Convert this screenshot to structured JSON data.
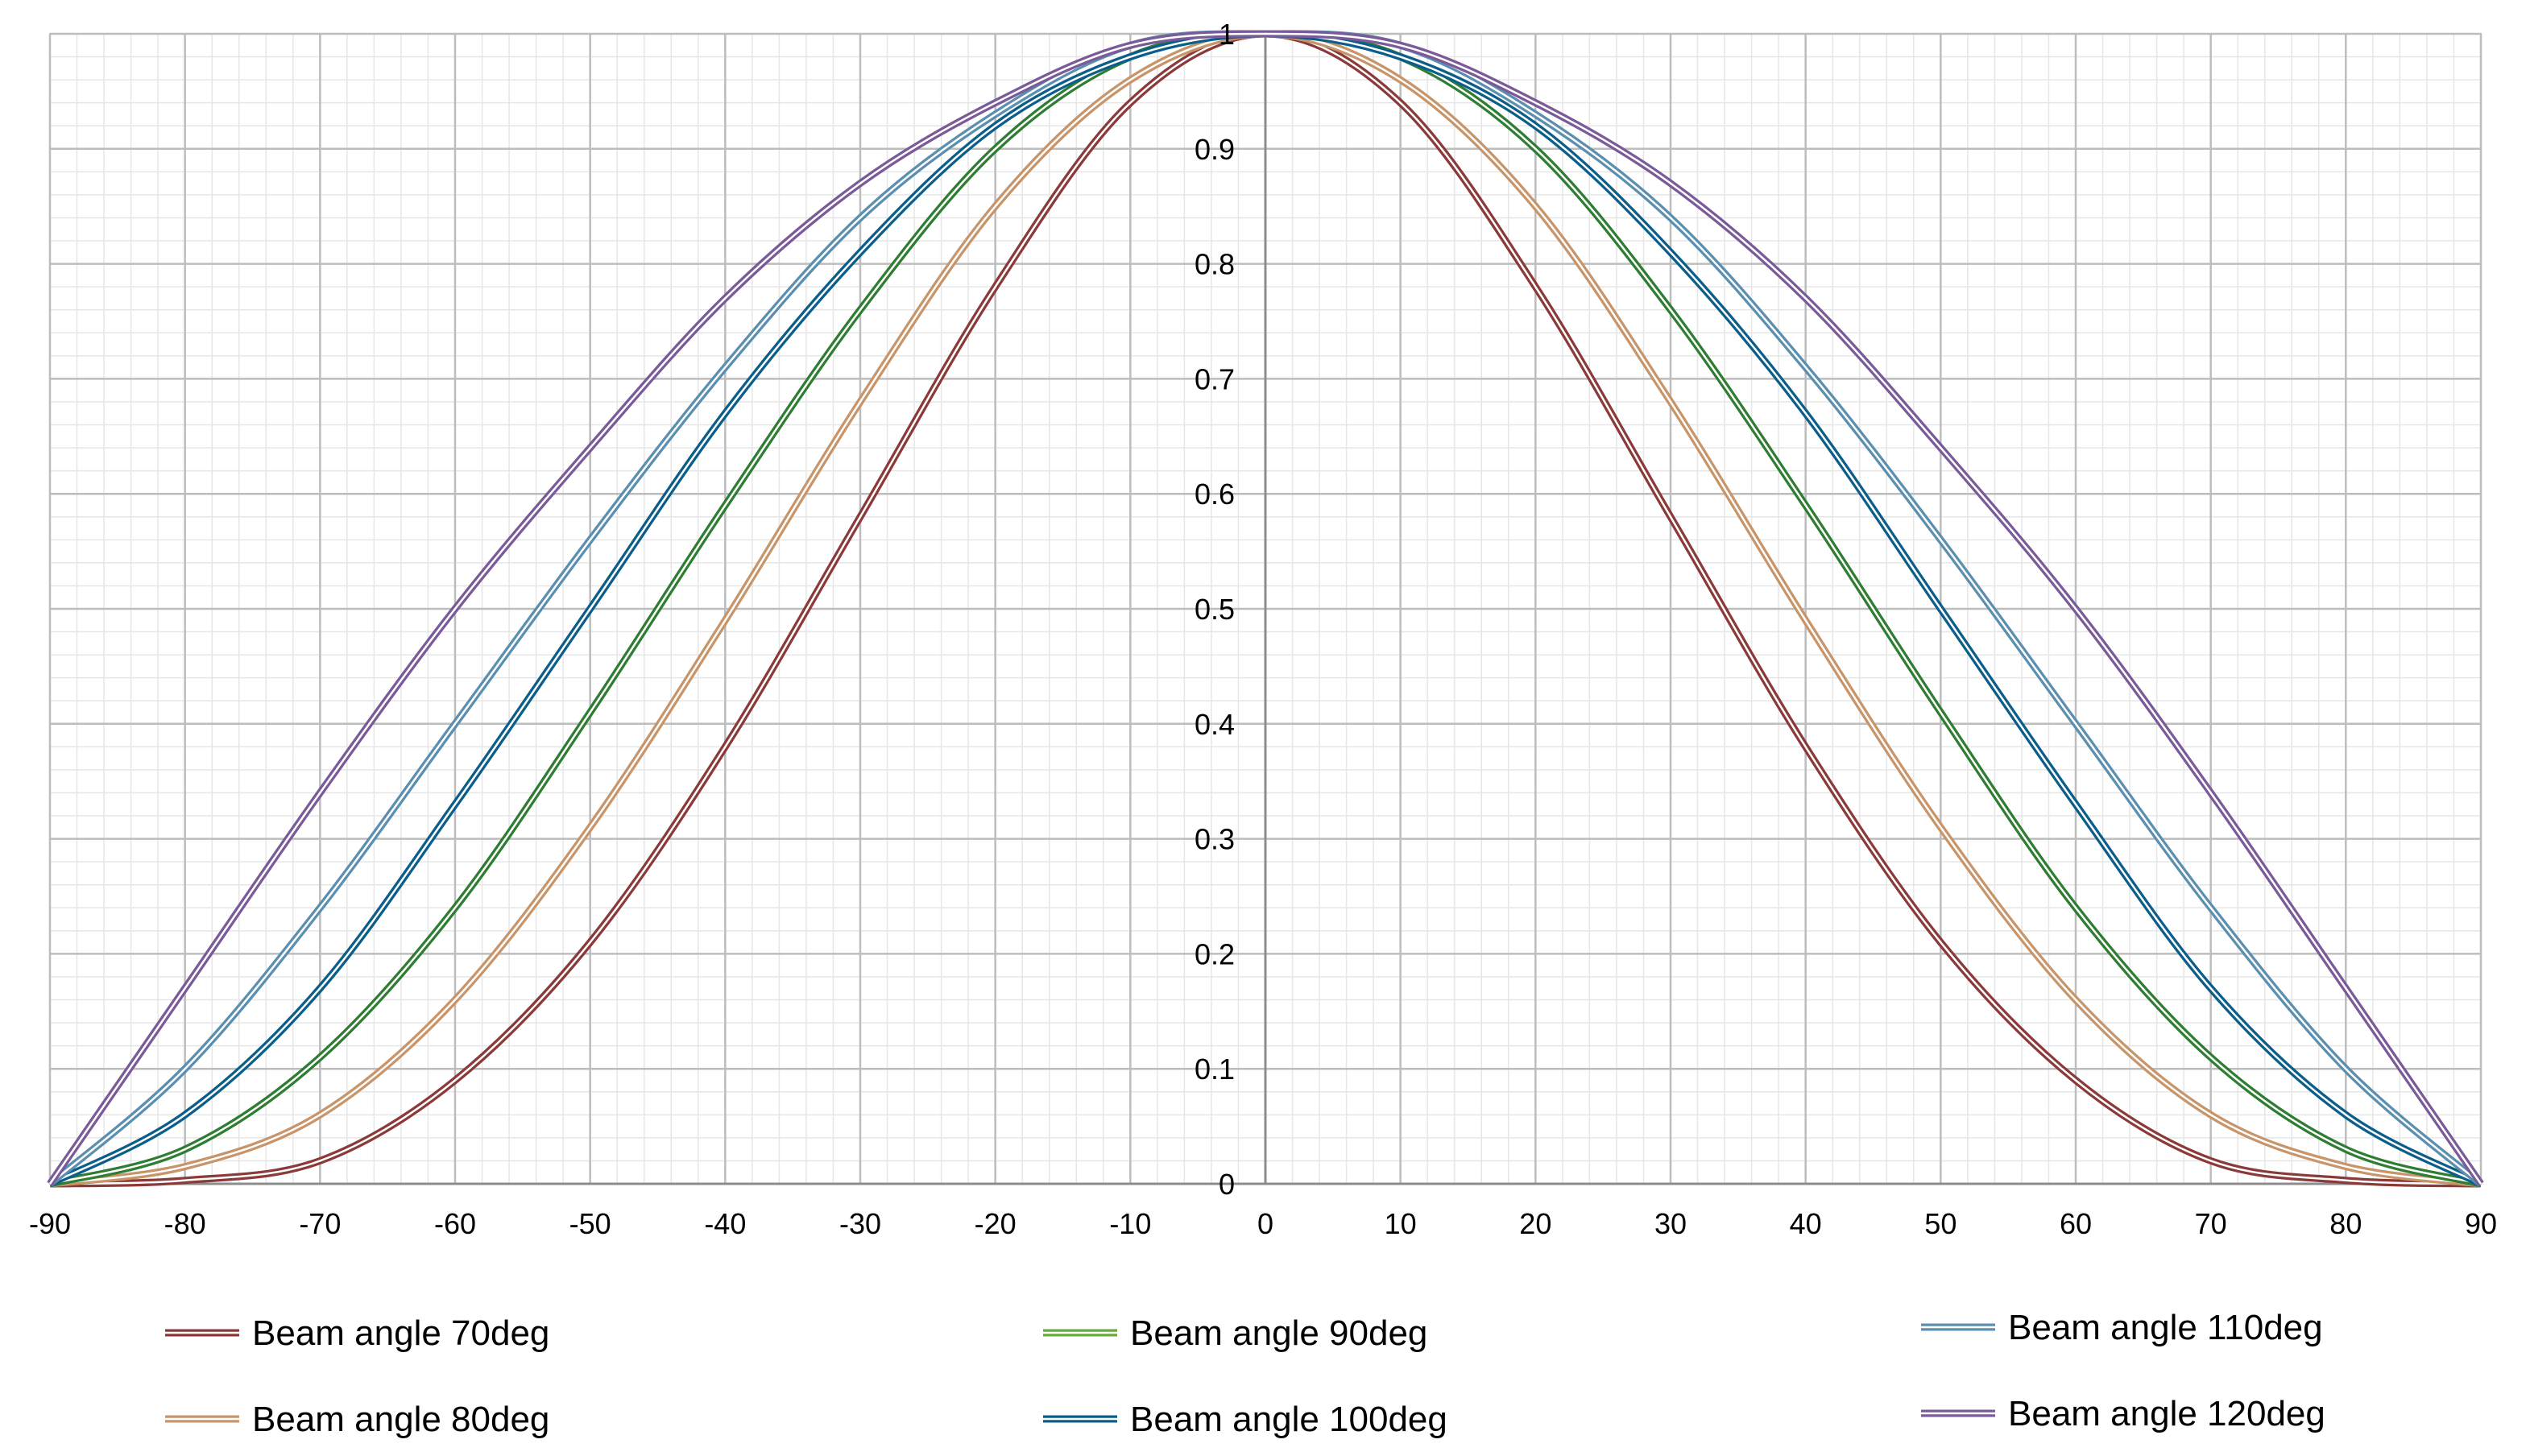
{
  "chart_data": {
    "type": "line",
    "title": "",
    "xlabel": "",
    "ylabel": "",
    "xlim": [
      -90,
      90
    ],
    "ylim": [
      0,
      1
    ],
    "x_ticks": [
      -90,
      -80,
      -70,
      -60,
      -50,
      -40,
      -30,
      -20,
      -10,
      0,
      10,
      20,
      30,
      40,
      50,
      60,
      70,
      80,
      90
    ],
    "x_tick_labels": [
      "-90",
      "-80",
      "-70",
      "-60",
      "-50",
      "-40",
      "-30",
      "-20",
      "-10",
      "0",
      "10",
      "20",
      "30",
      "40",
      "50",
      "60",
      "70",
      "80",
      "90"
    ],
    "y_ticks": [
      0,
      0.1,
      0.2,
      0.3,
      0.4,
      0.5,
      0.6,
      0.7,
      0.8,
      0.9,
      1
    ],
    "y_tick_labels": [
      "0",
      "0.1",
      "0.2",
      "0.3",
      "0.4",
      "0.5",
      "0.6",
      "0.7",
      "0.8",
      "0.9",
      "1"
    ],
    "grid": true,
    "minor_grid": true,
    "legend_position": "bottom",
    "x": [
      -90,
      -80,
      -70,
      -60,
      -50,
      -40,
      -30,
      -20,
      -10,
      0,
      10,
      20,
      30,
      40,
      50,
      60,
      70,
      80,
      90
    ],
    "series": [
      {
        "name": "Beam angle 70deg",
        "color": "#8b3a3a",
        "values": [
          0,
          0.003,
          0.02,
          0.09,
          0.21,
          0.38,
          0.58,
          0.78,
          0.94,
          1,
          0.94,
          0.78,
          0.58,
          0.38,
          0.21,
          0.09,
          0.02,
          0.003,
          0
        ]
      },
      {
        "name": "Beam angle 80deg",
        "color": "#c8956a",
        "values": [
          0,
          0.015,
          0.06,
          0.16,
          0.31,
          0.49,
          0.68,
          0.85,
          0.96,
          1,
          0.96,
          0.85,
          0.68,
          0.49,
          0.31,
          0.16,
          0.06,
          0.015,
          0
        ]
      },
      {
        "name": "Beam angle 90deg",
        "color": "#2e7d32",
        "values": [
          0,
          0.03,
          0.11,
          0.24,
          0.41,
          0.59,
          0.76,
          0.9,
          0.98,
          1,
          0.98,
          0.9,
          0.76,
          0.59,
          0.41,
          0.24,
          0.11,
          0.03,
          0
        ]
      },
      {
        "name": "Beam angle 100deg",
        "color": "#0b5e8a",
        "values": [
          0,
          0.06,
          0.17,
          0.33,
          0.5,
          0.67,
          0.81,
          0.92,
          0.98,
          1,
          0.98,
          0.92,
          0.81,
          0.67,
          0.5,
          0.33,
          0.17,
          0.06,
          0
        ]
      },
      {
        "name": "Beam angle 110deg",
        "color": "#5b8fb0",
        "values": [
          0,
          0.1,
          0.24,
          0.4,
          0.56,
          0.71,
          0.84,
          0.93,
          0.99,
          1,
          0.99,
          0.93,
          0.84,
          0.71,
          0.56,
          0.4,
          0.24,
          0.1,
          0
        ]
      },
      {
        "name": "Beam angle 120deg",
        "color": "#7a5a98",
        "values": [
          0,
          0.17,
          0.34,
          0.5,
          0.64,
          0.77,
          0.87,
          0.94,
          0.99,
          1,
          0.99,
          0.94,
          0.87,
          0.77,
          0.64,
          0.5,
          0.34,
          0.17,
          0
        ]
      }
    ],
    "legend_green_color": "#6aaa3a"
  }
}
